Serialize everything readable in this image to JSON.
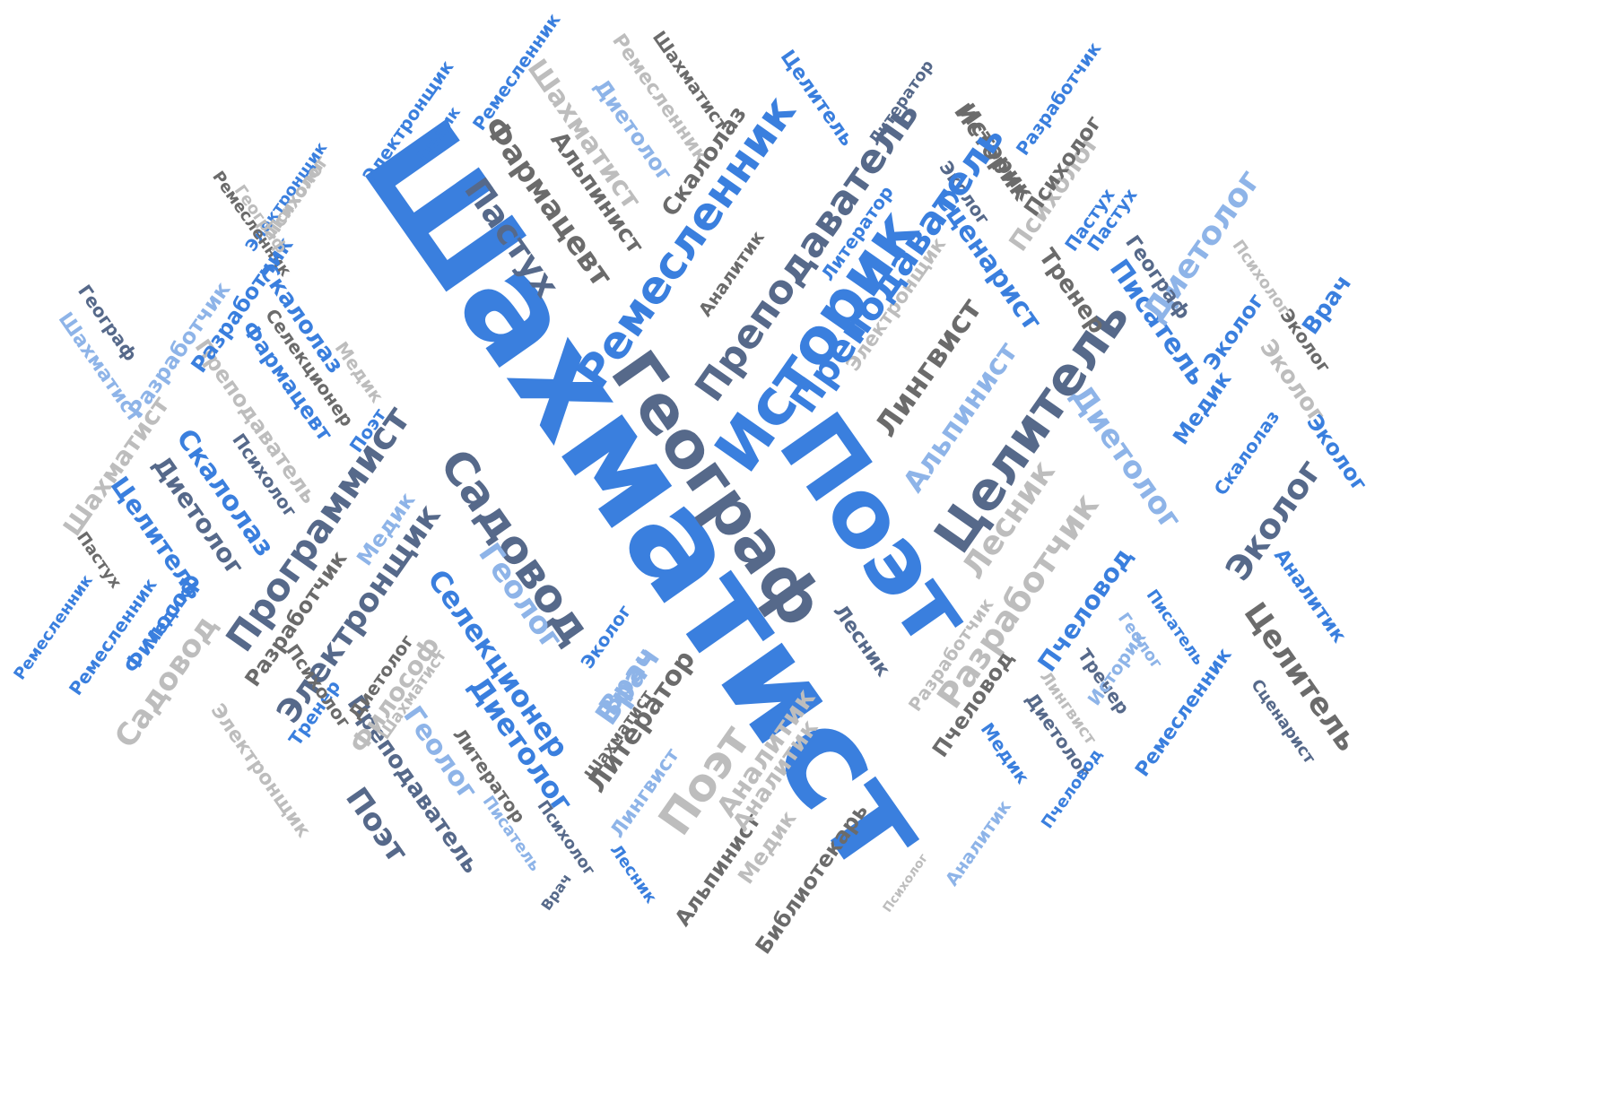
{
  "words": [
    {
      "text": "Шахматист",
      "color": "blue"
    },
    {
      "text": "Поэт",
      "color": "blue"
    },
    {
      "text": "Историк",
      "color": "blue"
    },
    {
      "text": "Географ",
      "color": "slate"
    },
    {
      "text": "Ремесленник",
      "color": "blue"
    },
    {
      "text": "Преподаватель",
      "color": "slate"
    },
    {
      "text": "Целитель",
      "color": "slate"
    },
    {
      "text": "Программист",
      "color": "slate"
    },
    {
      "text": "Садовод",
      "color": "slate"
    },
    {
      "text": "Электронщик",
      "color": "slate"
    },
    {
      "text": "Разработчик",
      "color": "lightgray"
    },
    {
      "text": "Пастух",
      "color": "slate"
    },
    {
      "text": "Фармацевт",
      "color": "gray"
    },
    {
      "text": "Сценарист",
      "color": "blue"
    },
    {
      "text": "Лингвист",
      "color": "gray"
    },
    {
      "text": "Альпинист",
      "color": "lightblue"
    },
    {
      "text": "Лесник",
      "color": "lightgray"
    },
    {
      "text": "Писатель",
      "color": "blue"
    },
    {
      "text": "Диетолог",
      "color": "lightblue"
    },
    {
      "text": "Тренер",
      "color": "gray"
    },
    {
      "text": "Психолог",
      "color": "lightgray"
    },
    {
      "text": "Историк",
      "color": "gray"
    },
    {
      "text": "Пастух",
      "color": "blue"
    },
    {
      "text": "Эколог",
      "color": "slate"
    },
    {
      "text": "Целитель",
      "color": "gray"
    },
    {
      "text": "Пчеловод",
      "color": "blue"
    },
    {
      "text": "Поэт",
      "color": "lightgray"
    },
    {
      "text": "Литератор",
      "color": "gray"
    },
    {
      "text": "Аналитик",
      "color": "lightgray"
    },
    {
      "text": "Диетолог",
      "color": "blue"
    },
    {
      "text": "Селекционер",
      "color": "blue"
    },
    {
      "text": "Геолог",
      "color": "lightblue"
    },
    {
      "text": "Врач",
      "color": "lightblue"
    },
    {
      "text": "Поэт",
      "color": "slate"
    },
    {
      "text": "Преподаватель",
      "color": "slate"
    },
    {
      "text": "Геолог",
      "color": "lightblue"
    },
    {
      "text": "Философ",
      "color": "lightgray"
    },
    {
      "text": "Садовод",
      "color": "lightgray"
    },
    {
      "text": "Электронщик",
      "color": "lightgray"
    },
    {
      "text": "Шахматист",
      "color": "lightgray"
    },
    {
      "text": "Скалолаз",
      "color": "blue"
    },
    {
      "text": "Диетолог",
      "color": "slate"
    },
    {
      "text": "Целитель",
      "color": "blue"
    },
    {
      "text": "Философ",
      "color": "blue"
    },
    {
      "text": "Ремесленник",
      "color": "blue"
    },
    {
      "text": "Ремесленник",
      "color": "blue"
    },
    {
      "text": "Пастух",
      "color": "gray"
    },
    {
      "text": "Разработчик",
      "color": "lightblue"
    },
    {
      "text": "Шахматист",
      "color": "lightblue"
    },
    {
      "text": "Географ",
      "color": "slate"
    },
    {
      "text": "Скалолаз",
      "color": "blue"
    },
    {
      "text": "Фармацевт",
      "color": "blue"
    },
    {
      "text": "Селекционер",
      "color": "gray"
    },
    {
      "text": "Преподаватель",
      "color": "lightgray"
    },
    {
      "text": "Психолог",
      "color": "slate"
    },
    {
      "text": "Медик",
      "color": "lightgray"
    },
    {
      "text": "Поэт",
      "color": "blue"
    },
    {
      "text": "Медик",
      "color": "lightblue"
    },
    {
      "text": "Разработчик",
      "color": "gray"
    },
    {
      "text": "Диетолог",
      "color": "gray"
    },
    {
      "text": "Тренер",
      "color": "blue"
    },
    {
      "text": "Психолог",
      "color": "lightgray"
    },
    {
      "text": "Электронщик",
      "color": "blue"
    },
    {
      "text": "Медик",
      "color": "blue"
    },
    {
      "text": "Ремесленник",
      "color": "blue"
    },
    {
      "text": "Шахматист",
      "color": "lightgray"
    },
    {
      "text": "Ремесленник",
      "color": "lightgray"
    },
    {
      "text": "Диетолог",
      "color": "lightblue"
    },
    {
      "text": "Шахматист",
      "color": "gray"
    },
    {
      "text": "Альпинист",
      "color": "gray"
    },
    {
      "text": "Скалолаз",
      "color": "gray"
    },
    {
      "text": "Целитель",
      "color": "blue"
    },
    {
      "text": "Литератор",
      "color": "slate"
    },
    {
      "text": "Разработчик",
      "color": "blue"
    },
    {
      "text": "Историк",
      "color": "gray"
    },
    {
      "text": "Эколог",
      "color": "slate"
    },
    {
      "text": "Психолог",
      "color": "lightgray"
    },
    {
      "text": "Пастух",
      "color": "blue"
    },
    {
      "text": "Диетолог",
      "color": "lightblue"
    },
    {
      "text": "Психолог",
      "color": "gray"
    },
    {
      "text": "Врач",
      "color": "blue"
    },
    {
      "text": "Эколог",
      "color": "gray"
    },
    {
      "text": "Эколог",
      "color": "blue"
    },
    {
      "text": "Эколог",
      "color": "lightgray"
    },
    {
      "text": "Медик",
      "color": "blue"
    },
    {
      "text": "Скалолаз",
      "color": "blue"
    },
    {
      "text": "Эколог",
      "color": "blue"
    },
    {
      "text": "Аналитик",
      "color": "blue"
    },
    {
      "text": "Географ",
      "color": "slate"
    },
    {
      "text": "Аналитик",
      "color": "gray"
    },
    {
      "text": "Электронщик",
      "color": "lightgray"
    },
    {
      "text": "Лесник",
      "color": "slate"
    },
    {
      "text": "Эколог",
      "color": "blue"
    },
    {
      "text": "Врач",
      "color": "lightblue"
    },
    {
      "text": "Разработчик",
      "color": "lightgray"
    },
    {
      "text": "Пчеловод",
      "color": "gray"
    },
    {
      "text": "Медик",
      "color": "blue"
    },
    {
      "text": "Диетолог",
      "color": "slate"
    },
    {
      "text": "Лингвист",
      "color": "lightgray"
    },
    {
      "text": "Тренер",
      "color": "slate"
    },
    {
      "text": "Историк",
      "color": "lightblue"
    },
    {
      "text": "Геолог",
      "color": "lightblue"
    },
    {
      "text": "Писатель",
      "color": "blue"
    },
    {
      "text": "Ремесленник",
      "color": "blue"
    },
    {
      "text": "Сценарист",
      "color": "slate"
    },
    {
      "text": "Пчеловод",
      "color": "blue"
    },
    {
      "text": "Аналитик",
      "color": "lightblue"
    },
    {
      "text": "Психолог",
      "color": "lightgray"
    },
    {
      "text": "Библиотекарь",
      "color": "gray"
    },
    {
      "text": "Медик",
      "color": "lightgray"
    },
    {
      "text": "Альпинист",
      "color": "gray"
    },
    {
      "text": "Лесник",
      "color": "blue"
    },
    {
      "text": "Лингвист",
      "color": "lightblue"
    },
    {
      "text": "Шахматист",
      "color": "gray"
    },
    {
      "text": "Врач",
      "color": "slate"
    },
    {
      "text": "Психолог",
      "color": "slate"
    },
    {
      "text": "Писатель",
      "color": "lightblue"
    },
    {
      "text": "Литератор",
      "color": "gray"
    },
    {
      "text": "Шахматист",
      "color": "lightgray"
    },
    {
      "text": "Психолог",
      "color": "gray"
    },
    {
      "text": "Медик",
      "color": "blue"
    },
    {
      "text": "Электронщик",
      "color": "blue"
    },
    {
      "text": "Ремесленник",
      "color": "gray"
    },
    {
      "text": "Разработчик",
      "color": "blue"
    },
    {
      "text": "Литератор",
      "color": "blue"
    },
    {
      "text": "Географ",
      "color": "lightgray"
    },
    {
      "text": "Психолог",
      "color": "lightgray"
    },
    {
      "text": "Преподаватель",
      "color": "blue"
    },
    {
      "text": "Аналитик",
      "color": "lightgray"
    }
  ],
  "palette": {
    "blue": "#3a7fde",
    "lightblue": "#8eb4e8",
    "slate": "#56698a",
    "gray": "#6b6b6b",
    "lightgray": "#bdbdbd"
  }
}
